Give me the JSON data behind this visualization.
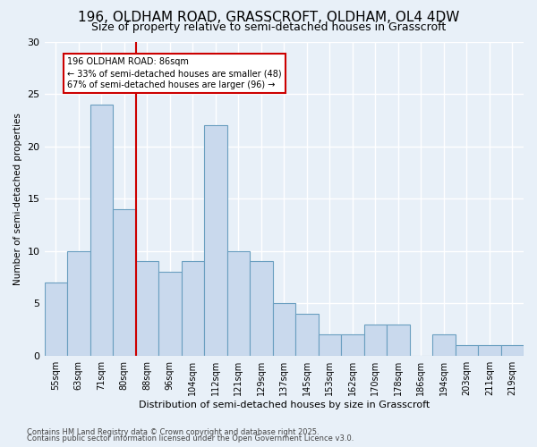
{
  "title1": "196, OLDHAM ROAD, GRASSCROFT, OLDHAM, OL4 4DW",
  "title2": "Size of property relative to semi-detached houses in Grasscroft",
  "xlabel": "Distribution of semi-detached houses by size in Grasscroft",
  "ylabel": "Number of semi-detached properties",
  "categories": [
    "55sqm",
    "63sqm",
    "71sqm",
    "80sqm",
    "88sqm",
    "96sqm",
    "104sqm",
    "112sqm",
    "121sqm",
    "129sqm",
    "137sqm",
    "145sqm",
    "153sqm",
    "162sqm",
    "170sqm",
    "178sqm",
    "186sqm",
    "194sqm",
    "203sqm",
    "211sqm",
    "219sqm"
  ],
  "values": [
    7,
    10,
    24,
    14,
    9,
    8,
    9,
    22,
    10,
    9,
    5,
    4,
    2,
    2,
    3,
    3,
    0,
    2,
    1,
    1,
    1
  ],
  "bar_color": "#c9d9ed",
  "bar_edge_color": "#6a9fc0",
  "vline_x_index": 3,
  "vline_color": "#cc0000",
  "annotation_text": "196 OLDHAM ROAD: 86sqm\n← 33% of semi-detached houses are smaller (48)\n67% of semi-detached houses are larger (96) →",
  "annotation_box_color": "#ffffff",
  "annotation_box_edge": "#cc0000",
  "footer1": "Contains HM Land Registry data © Crown copyright and database right 2025.",
  "footer2": "Contains public sector information licensed under the Open Government Licence v3.0.",
  "ylim": [
    0,
    30
  ],
  "yticks": [
    0,
    5,
    10,
    15,
    20,
    25,
    30
  ],
  "bg_color": "#e8f0f8",
  "plot_bg_color": "#e8f0f8",
  "grid_color": "#ffffff",
  "title1_fontsize": 11,
  "title2_fontsize": 9
}
